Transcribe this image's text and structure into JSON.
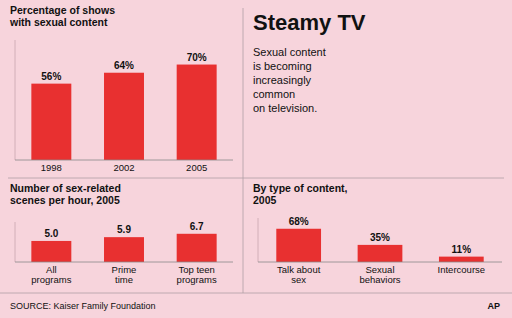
{
  "title": "Steamy TV",
  "subtitle": "Sexual content\nis becoming\nincreasingly\ncommon\non television.",
  "annotations": [
    "SOURCE: Kaiser Family Foundation",
    "AP"
  ],
  "chart_data": [
    {
      "type": "bar",
      "title": "Percentage of shows\nwith sexual content",
      "categories": [
        "1998",
        "2002",
        "2005"
      ],
      "values": [
        56,
        64,
        70
      ],
      "value_labels": [
        "56%",
        "64%",
        "70%"
      ],
      "color": "#e83030",
      "ylim": [
        0,
        88
      ],
      "data_labels": true,
      "tick_labels": "x",
      "grid": false
    },
    {
      "type": "bar",
      "title": "Number of sex-related\nscenes per hour, 2005",
      "categories": [
        "All\nprograms",
        "Prime\ntime",
        "Top teen\nprograms"
      ],
      "values": [
        5.0,
        5.9,
        6.7
      ],
      "value_labels": [
        "5.0",
        "5.9",
        "6.7"
      ],
      "color": "#e83030",
      "ylim": [
        0,
        9.5
      ],
      "data_labels": true,
      "tick_labels": "x",
      "grid": false
    },
    {
      "type": "bar",
      "title": "By type of content,\n2005",
      "categories": [
        "Talk about\nsex",
        "Sexual\nbehaviors",
        "Intercourse"
      ],
      "values": [
        68,
        35,
        11
      ],
      "value_labels": [
        "68%",
        "35%",
        "11%"
      ],
      "color": "#e83030",
      "ylim": [
        0,
        90
      ],
      "data_labels": true,
      "tick_labels": "x",
      "grid": false
    }
  ]
}
